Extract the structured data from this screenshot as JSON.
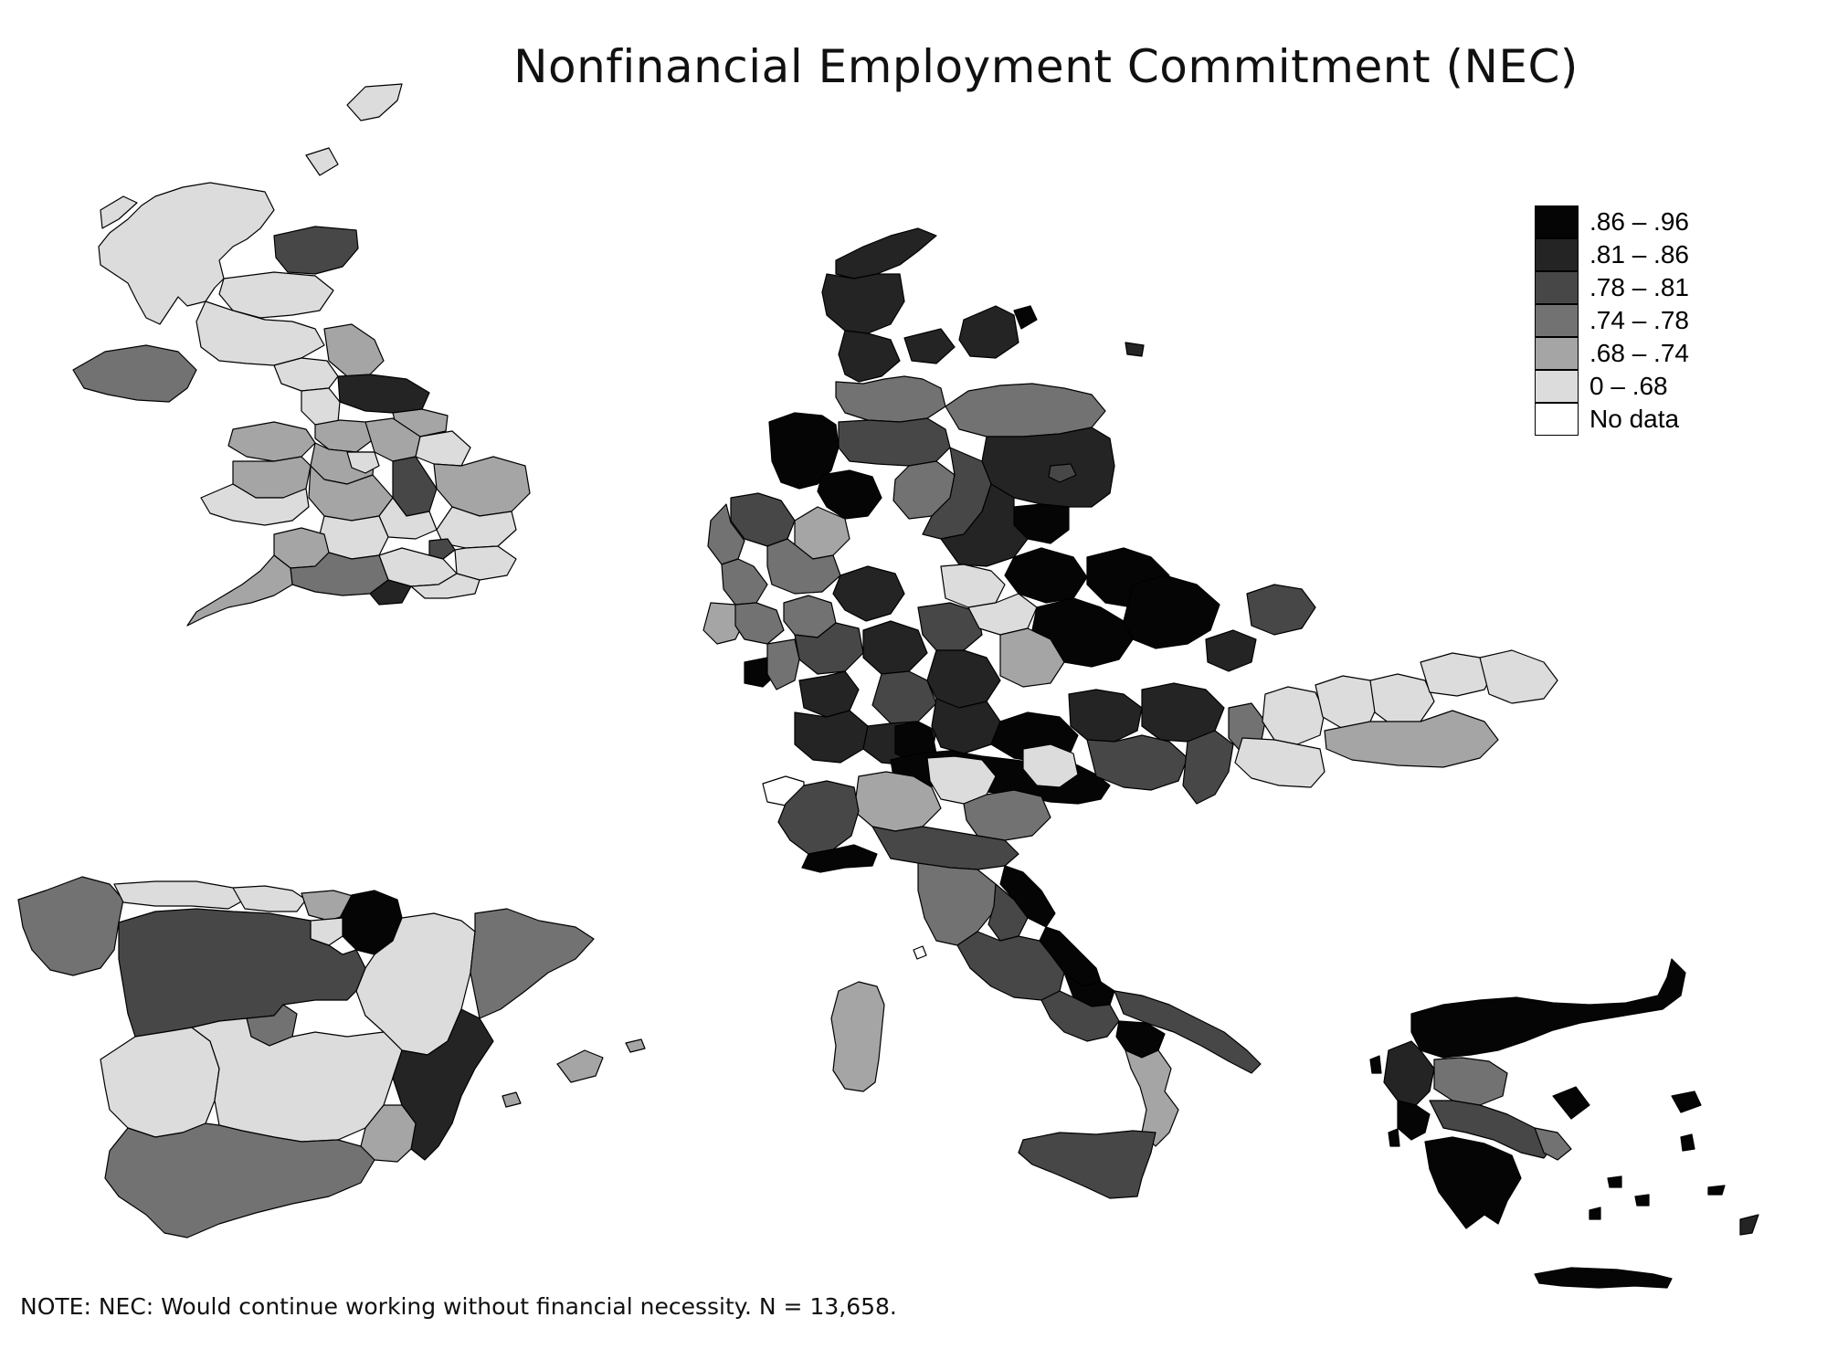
{
  "title": "Nonfinancial Employment Commitment (NEC)",
  "note": "NOTE: NEC: Would continue working without financial necessity. N = 13,658.",
  "legend": [
    {
      "label": ".86 – .96",
      "color": "#050505"
    },
    {
      "label": ".81 – .86",
      "color": "#242424"
    },
    {
      "label": ".78 – .81",
      "color": "#474747"
    },
    {
      "label": ".74 – .78",
      "color": "#727272"
    },
    {
      "label": ".68 – .74",
      "color": "#a5a5a5"
    },
    {
      "label": "0 – .68",
      "color": "#dcdcdc"
    },
    {
      "label": "No data",
      "color": "#ffffff"
    }
  ],
  "map_regions": {
    "united_kingdom": "mixed, mostly 0 – .68 and .68 – .74; Northern Ireland .74 – .78",
    "denmark": ".81 – .86",
    "germany": "mixed, .74 – .96",
    "austria": ".78 – .96",
    "hungary": "0 – .68 / .68 – .74",
    "italy": "mixed, .68 – .96",
    "spain": "mixed, 0 – .81; Valencia .81 – .86; Navarra .86 – .96",
    "greece": "mostly .86 – .96"
  }
}
